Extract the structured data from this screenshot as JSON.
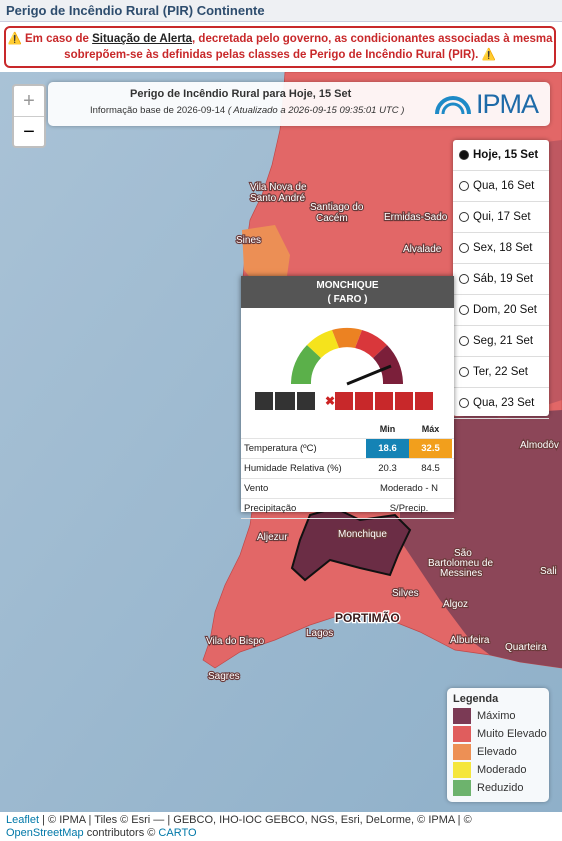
{
  "header": {
    "title": "Perigo de Incêndio Rural (PIR) Continente"
  },
  "alert": {
    "prefix": "Em caso de",
    "link": "Situação de Alerta",
    "suffix": ", decretada pelo governo, as condicionantes associadas à mesma sobrepõem-se às definidas pelas classes de Perigo de Incêndio Rural (PIR)."
  },
  "map": {
    "zoom_in": "+",
    "zoom_out": "−",
    "title": "Perigo de Incêndio Rural para Hoje, 15 Set",
    "subtitle": "Informação base de 2026-09-14",
    "updated": "( Atualizado a 2026-09-15 09:35:01 UTC )",
    "logo": "IPMA",
    "days": [
      "Hoje, 15 Set",
      "Qua, 16 Set",
      "Qui, 17 Set",
      "Sex, 18 Set",
      "Sáb, 19 Set",
      "Dom, 20 Set",
      "Seg, 21 Set",
      "Ter, 22 Set",
      "Qua, 23 Set"
    ],
    "selected_day": 0,
    "places": [
      "Vila Nova de",
      "Santo André",
      "Santiago do",
      "Cacém",
      "Sines",
      "Ermidas-Sado",
      "Alvalade",
      "Almodôv",
      "Aljezur",
      "Monchique",
      "São",
      "Bartolomeu de",
      "Messines",
      "Sali",
      "Silves",
      "Algoz",
      "PORTIMÃO",
      "Lagos",
      "Albufeira",
      "Quarteira",
      "Vila do Bispo",
      "Sagres"
    ],
    "popup": {
      "name": "MONCHIQUE",
      "district": "( FARO )",
      "headers": [
        "Min",
        "Máx"
      ],
      "rows": [
        [
          "Temperatura (ºC)",
          18.6,
          32.5
        ],
        [
          "Humidade Relativa (%)",
          20.3,
          84.5
        ],
        [
          "Vento",
          "Moderado - N"
        ],
        [
          "Precipitação",
          "S/Precip."
        ]
      ]
    },
    "legend": {
      "title": "Legenda",
      "items": [
        {
          "label": "Máximo",
          "color": "#7b3a55"
        },
        {
          "label": "Muito Elevado",
          "color": "#e05d5d"
        },
        {
          "label": "Elevado",
          "color": "#ed9055"
        },
        {
          "label": "Moderado",
          "color": "#f5e63c"
        },
        {
          "label": "Reduzido",
          "color": "#6db36d"
        }
      ]
    }
  },
  "attribution": {
    "leaflet": "Leaflet",
    "a": "| ©",
    "ipma1": "IPMA",
    "b": "| Tiles © Esri — | GEBCO, IHO-IOC GEBCO, NGS, Esri, DeLorme, ©",
    "ipma2": "IPMA",
    "c": "| ©",
    "osm": "OpenStreetMap",
    "d": "contributors ©",
    "carto": "CARTO"
  }
}
